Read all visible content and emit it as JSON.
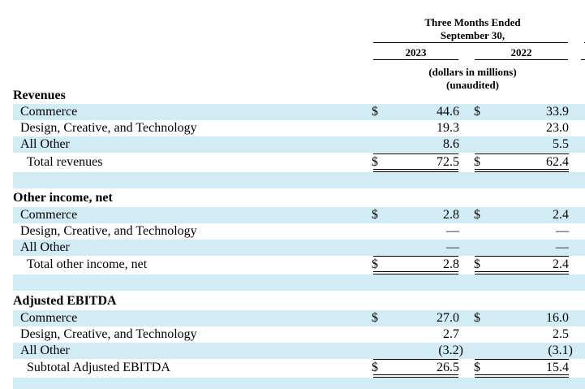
{
  "header": {
    "period_line1": "Three Months Ended",
    "period_line2": "September 30,",
    "year1": "2023",
    "year2": "2022",
    "units_line1": "(dollars in millions)",
    "units_line2": "(unaudited)"
  },
  "sections": {
    "revenues": {
      "title": "Revenues",
      "rows": [
        {
          "label": "Commerce",
          "cur1": "$",
          "v2023": "44.6",
          "cur2": "$",
          "v2022": "33.9"
        },
        {
          "label": "Design, Creative, and Technology",
          "cur1": "",
          "v2023": "19.3",
          "cur2": "",
          "v2022": "23.0"
        },
        {
          "label": "All Other",
          "cur1": "",
          "v2023": "8.6",
          "cur2": "",
          "v2022": "5.5"
        }
      ],
      "total": {
        "label": "Total revenues",
        "cur1": "$",
        "v2023": "72.5",
        "cur2": "$",
        "v2022": "62.4"
      }
    },
    "other_income": {
      "title": "Other income, net",
      "rows": [
        {
          "label": "Commerce",
          "cur1": "$",
          "v2023": "2.8",
          "cur2": "$",
          "v2022": "2.4"
        },
        {
          "label": "Design, Creative, and Technology",
          "cur1": "",
          "v2023": "—",
          "cur2": "",
          "v2022": "—"
        },
        {
          "label": "All Other",
          "cur1": "",
          "v2023": "—",
          "cur2": "",
          "v2022": "—"
        }
      ],
      "total": {
        "label": "Total other income, net",
        "cur1": "$",
        "v2023": "2.8",
        "cur2": "$",
        "v2022": "2.4"
      }
    },
    "adjusted_ebitda": {
      "title": "Adjusted EBITDA",
      "rows": [
        {
          "label": "Commerce",
          "cur1": "$",
          "v2023": "27.0",
          "cur2": "$",
          "v2022": "16.0"
        },
        {
          "label": "Design, Creative, and Technology",
          "cur1": "",
          "v2023": "2.7",
          "cur2": "",
          "v2022": "2.5"
        },
        {
          "label": "All Other",
          "cur1": "",
          "v2023": "(3.2)",
          "cur2": "",
          "v2022": "(3.1)"
        }
      ],
      "total": {
        "label": "Subtotal Adjusted EBITDA",
        "cur1": "$",
        "v2023": "26.5",
        "cur2": "$",
        "v2022": "15.4"
      }
    }
  }
}
